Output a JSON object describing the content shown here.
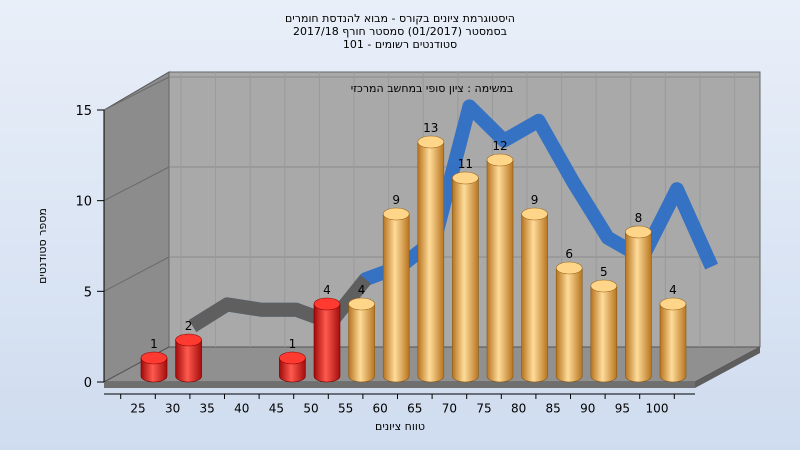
{
  "chart_data": {
    "type": "bar",
    "title_lines": [
      "היסטוגרמת ציונים בקורס - מבוא להנדסת חומרים",
      "בסמסטר  (01/2017)  סמסטר חורף 2017/18",
      "סטודנטים רשומים - 101"
    ],
    "subtitle": "במשימה : ציון סופי במחשב המרכזי",
    "xlabel": "טווח ציונים",
    "ylabel": "מספר סטודנטים",
    "categories": [
      "25",
      "30",
      "35",
      "40",
      "45",
      "50",
      "55",
      "60",
      "65",
      "70",
      "75",
      "80",
      "85",
      "90",
      "95",
      "100"
    ],
    "values": [
      1,
      2,
      0,
      0,
      1,
      4,
      4,
      9,
      13,
      11,
      12,
      9,
      6,
      5,
      8,
      4
    ],
    "bar_colors": [
      "red",
      "red",
      "red",
      "red",
      "red",
      "red",
      "gold",
      "gold",
      "gold",
      "gold",
      "gold",
      "gold",
      "gold",
      "gold",
      "gold",
      "gold"
    ],
    "y_ticks": [
      0,
      5,
      10,
      15
    ],
    "ylim": [
      0,
      15
    ],
    "trend_line": {
      "x": [
        "30",
        "35",
        "40",
        "45",
        "50",
        "55",
        "60",
        "65",
        "70",
        "75",
        "80",
        "85",
        "90",
        "95",
        "100",
        "105"
      ],
      "y": [
        2,
        3.2,
        2.9,
        2.9,
        2.2,
        4.6,
        5.3,
        6.8,
        14.2,
        12.3,
        13.4,
        10,
        6.9,
        5.8,
        9.6,
        5.3
      ],
      "color": "#2f6fc4"
    },
    "colors": {
      "red": "#e0191c",
      "gold": "#e8a84a",
      "wall": "#a9a9a9",
      "floor": "#8f8f8f",
      "background": "#dce6f4"
    }
  }
}
